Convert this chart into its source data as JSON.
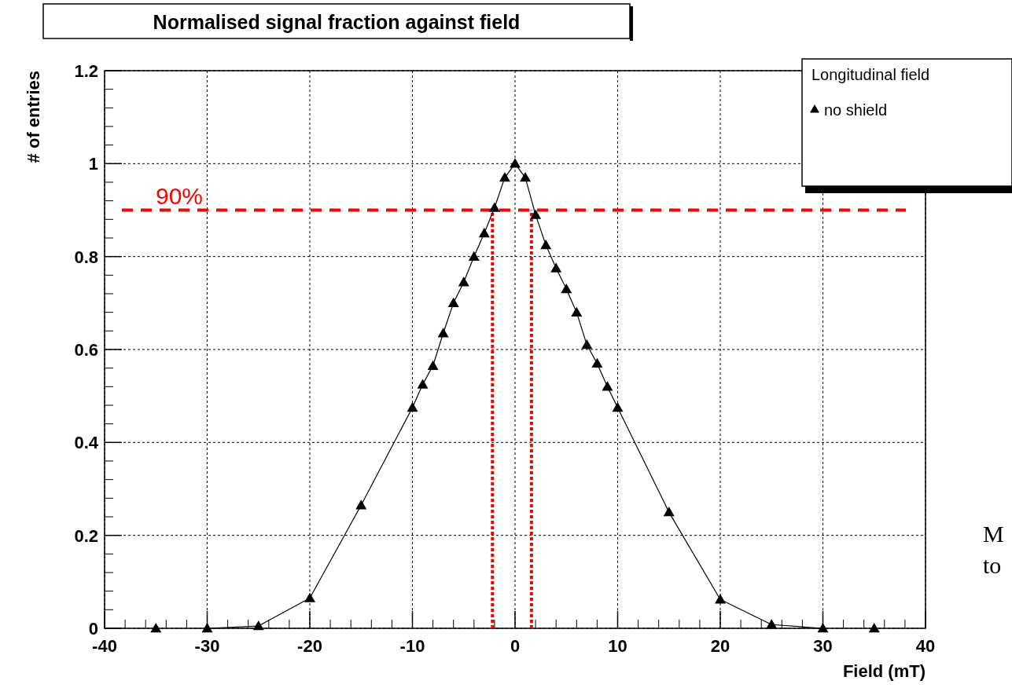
{
  "chart_data": {
    "type": "line",
    "title": "Normalised signal fraction against field",
    "xlabel": "Field (mT)",
    "ylabel": "# of entries",
    "legend_title": "Longitudinal field",
    "xlim": [
      -40,
      40
    ],
    "xticks": [
      -40,
      -30,
      -20,
      -10,
      0,
      10,
      20,
      30,
      40
    ],
    "ylim": [
      0,
      1.2
    ],
    "yticks": [
      0,
      0.2,
      0.4,
      0.6,
      0.8,
      1,
      1.2
    ],
    "grid": true,
    "legend": "top right",
    "marker": "triangle",
    "series": [
      {
        "name": "no shield",
        "color": "#000000",
        "x": [
          -30,
          -25,
          -20,
          -15,
          -10,
          -9,
          -8,
          -7,
          -6,
          -5,
          -4,
          -3,
          -2,
          -1,
          0,
          1,
          2,
          3,
          4,
          5,
          6,
          7,
          8,
          9,
          10,
          15,
          20,
          25,
          30
        ],
        "values": [
          0,
          0.005,
          0.065,
          0.265,
          0.475,
          0.525,
          0.565,
          0.635,
          0.7,
          0.745,
          0.8,
          0.85,
          0.905,
          0.97,
          1,
          0.97,
          0.89,
          0.825,
          0.775,
          0.73,
          0.68,
          0.61,
          0.57,
          0.52,
          0.475,
          0.25,
          0.062,
          0.008,
          0
        ]
      },
      {
        "type": "scatter",
        "color": "#000000",
        "x": [
          -35,
          35
        ],
        "values": [
          0,
          0
        ]
      }
    ],
    "ref_lines": [
      {
        "axis": "y",
        "value": 0.9,
        "label": "90%",
        "color": "#ff0000",
        "line_style": "dashed"
      },
      {
        "axis": "x",
        "value": -2.2,
        "color": "#ff0000",
        "line_style": "dotted"
      },
      {
        "axis": "x",
        "value": 1.6,
        "color": "#ff0000",
        "line_style": "dotted"
      }
    ],
    "annotations": [
      "M",
      "to"
    ]
  }
}
